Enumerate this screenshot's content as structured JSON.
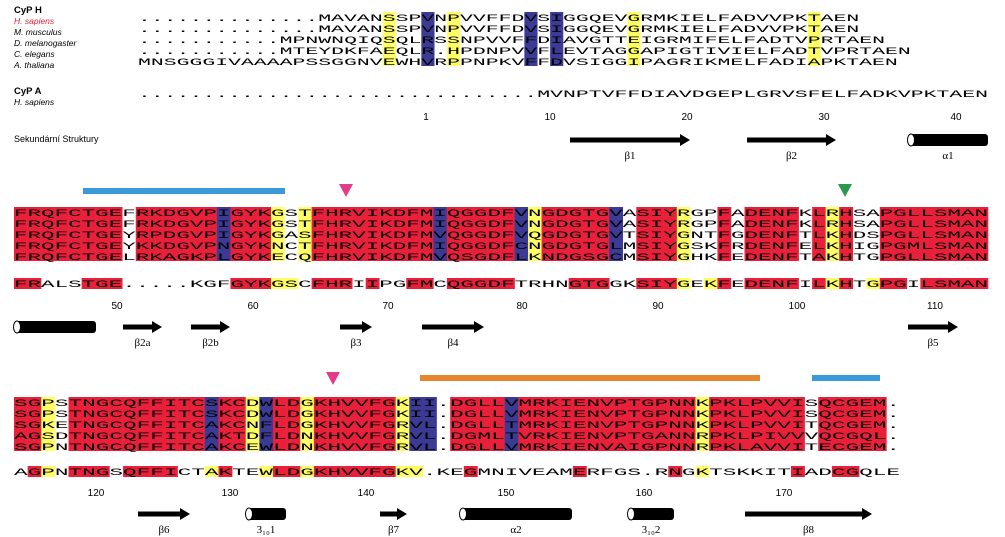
{
  "colors": {
    "identical": "#e8203a",
    "similar": "#ffff66",
    "hydrophobic_blue": "#3b3a95",
    "gray": "#b4b4b4",
    "text_on_red": "#ffffff",
    "species_highlight": "#e8203a",
    "arrow": "#000000",
    "bar_blue": "#3a9ad9",
    "bar_orange": "#e5862f",
    "marker_pink": "#e23d8a",
    "marker_green": "#2c9a4e"
  },
  "group_labels": {
    "cyp_h": "CyP H",
    "cyp_a": "CyP A"
  },
  "species_h": [
    "H. sapiens",
    "M. musculus",
    "D. melanogaster",
    "C. elegans",
    "A. thaliana"
  ],
  "species_a": [
    "H. sapiens"
  ],
  "secondary_structure_label": "Sekundární Struktury",
  "blocks": [
    {
      "h_rows": [
        "..............MAVANSSPVNPVVFFDVSIGGQEVGRMKIELFADVVPKTAEN",
        "..............MAVANSSPVNPVVFFDVSIGGQEVGRMKIELFADVVPKTAEN",
        "...........MPNWNQIQSQLRSSNPVVFFDIAVGTTEIGRMIFELFADTVPRTAEN",
        "...........MTEYDKFAEQLR.HPDNPVVFLEVTAGGAPIGTIVIELFADTVPRTAEN",
        "MNSGGGIVAAAAPSSGGNVEWHVRPPNPKVFFDVSIGGIPAGRIKMELFADIAPKTAEN"
      ],
      "a_row": "...............................MVNPTVFFDIAVDGEPLGRVSFELFADKVPKTAEN",
      "numbers": [
        "1",
        "10",
        "20",
        "30",
        "40"
      ],
      "ss": [
        {
          "type": "strand",
          "label": "β1"
        },
        {
          "type": "strand",
          "label": "β2"
        },
        {
          "type": "helix",
          "label": "α1"
        }
      ]
    },
    {
      "h_rows": [
        "FRQFCTGEFRKDGVPIGYKGSTFHRVIKDFMIQGGDFVNGDGTGVASIYRGPFADENFKLRHSAPGLLSMAN",
        "FRQFCTGEFRKDGVPIGYKGSTFHRVIKDFMIQGGDFVNGDGTGVASIYRGPFADENFKLRHSAPGLLSMAN",
        "FRQFCTGEYRPDGVPIGYKGASFHRVIKDFMVQGGDFVQGDGTGVTSIYGNTFGDENFTLKHDSPGLLSMAN",
        "FRQFCTGEYKKDGVPNGYKNCTFHRVIKDFMIQGGDFCNGDGTGLMSIYGSKFRDENFELKHIGPGMLSMAN",
        "FRQFCTGELRKAGKPLGYKECQFHRVIKDFMVQSGDFLKNDGSGCMSIYGHKFEDENFTAKHTGPGLLSMAN"
      ],
      "a_row": "FRALSTGE.....KGFGYKGSCFHRIIPGFMCQGGDFTRHNGTGGKSIYGEKFEDENFILKHTGPGILSMAN",
      "numbers": [
        "50",
        "60",
        "70",
        "80",
        "90",
        "100",
        "110"
      ],
      "ss": [
        {
          "type": "helix",
          "label": ""
        },
        {
          "type": "strand",
          "label": "β2a"
        },
        {
          "type": "strand",
          "label": "β2b"
        },
        {
          "type": "strand",
          "label": "β3"
        },
        {
          "type": "strand",
          "label": "β4"
        },
        {
          "type": "strand",
          "label": "β5"
        }
      ]
    },
    {
      "h_rows": [
        "SGPSTNGCQFFITCSKCDWLDGKHVVFGKII.DGLLVMRKIENVPTGPNNKPKLPVVISQCGEM.",
        "SGPSTNGCQFFITCSKCDWLDGKHVVFGKII.DGLLVMRKIENVPTGPNNKPKLPVVISQCGEM.",
        "SGKETNGCQFFITCAKCNFLDGKHVVFGRVL.DGLLTMRKIENVPTGPNNKPKLPVVITQCGEM.",
        "AGSDTNGCQFFITCAKTDFLDNKHVVFGRVL.DGMLTVRKIENVPTGANNRPKLPIVVVQCGQL.",
        "SGPNTNGCQFFITCAKCEWLDNKHVVFGRVL.DGLLVMRKIENVAIGPNNRPKLAVVITECGEM."
      ],
      "a_row": "AGPNTNGSQFFICTAKTEWLDGKHVVFGKV.KEGMNIVEAMERFGS.RNGKTSKKITIADCGQLE",
      "numbers": [
        "120",
        "130",
        "140",
        "150",
        "160",
        "170"
      ],
      "ss": [
        {
          "type": "strand",
          "label": "β6"
        },
        {
          "type": "helix",
          "label": "3₁₀1"
        },
        {
          "type": "strand",
          "label": "β7"
        },
        {
          "type": "helix",
          "label": "α2"
        },
        {
          "type": "helix",
          "label": "3₁₀2"
        },
        {
          "type": "strand",
          "label": "β8"
        }
      ]
    }
  ]
}
